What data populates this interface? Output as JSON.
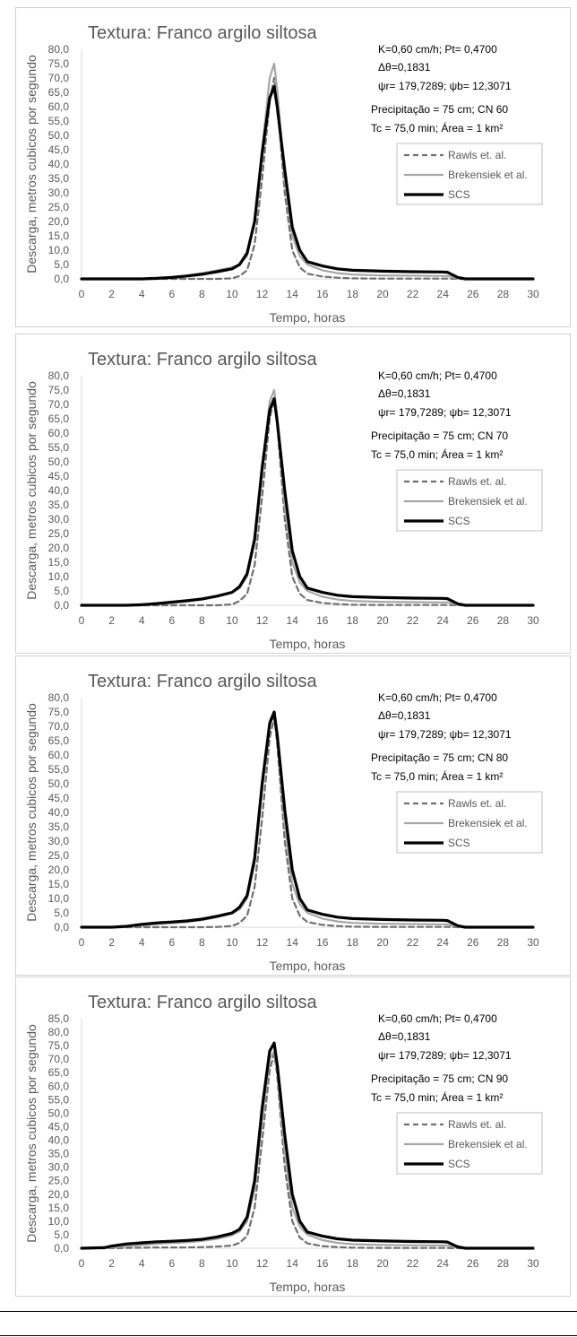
{
  "chart_data": [
    {
      "type": "line",
      "title": "Textura: Franco argilo siltosa",
      "xlabel": "Tempo, horas",
      "ylabel": "Descarga, metros cubicos por segundo",
      "xlim": [
        0,
        30
      ],
      "ylim": [
        0,
        80
      ],
      "xticks": [
        "0",
        "2",
        "4",
        "6",
        "8",
        "10",
        "12",
        "14",
        "16",
        "18",
        "20",
        "22",
        "24",
        "26",
        "28",
        "30"
      ],
      "yticks": [
        "0,0",
        "5,0",
        "10,0",
        "15,0",
        "20,0",
        "25,0",
        "30,0",
        "35,0",
        "40,0",
        "45,0",
        "50,0",
        "55,0",
        "60,0",
        "65,0",
        "70,0",
        "75,0",
        "80,0"
      ],
      "grid": false,
      "legend_position": "right",
      "annotations": [
        "K=0,60 cm/h; Pt= 0,4700",
        "Δθ=0,1831",
        "ψr= 179,7289;  ψb= 12,3071",
        "Precipitação = 75 cm; CN 60",
        "Tc = 75,0 min; Área = 1 km²"
      ],
      "x": [
        0,
        2,
        4,
        5,
        6,
        7,
        8,
        9,
        10,
        10.5,
        11,
        11.5,
        12,
        12.5,
        12.8,
        13,
        13.5,
        14,
        14.5,
        15,
        16,
        17,
        18,
        20,
        22,
        24,
        24.3,
        25,
        25.5,
        26,
        28,
        30
      ],
      "series": [
        {
          "name": "Rawls et. al.",
          "color": "#707070",
          "dash": "6,4",
          "width": 2.2,
          "values": [
            0,
            0,
            0,
            0,
            0,
            0,
            0,
            0,
            0.2,
            1,
            3,
            12,
            35,
            62,
            70,
            62,
            30,
            10,
            4,
            1.8,
            0.8,
            0.4,
            0.2,
            0.1,
            0.1,
            0.1,
            0.1,
            0,
            0,
            0,
            0,
            0
          ]
        },
        {
          "name": "Brekensiek et al.",
          "color": "#a6a6a6",
          "dash": "",
          "width": 2.2,
          "values": [
            0,
            0,
            0,
            0.2,
            0.6,
            1.2,
            2,
            3,
            4,
            5,
            8,
            20,
            45,
            70,
            75,
            66,
            35,
            15,
            8,
            5,
            3,
            2,
            1.5,
            1.2,
            1.1,
            1,
            1,
            0.2,
            0,
            0,
            0,
            0
          ]
        },
        {
          "name": "SCS",
          "color": "#000000",
          "dash": "",
          "width": 3.2,
          "values": [
            0,
            0,
            0,
            0.2,
            0.5,
            1,
            1.6,
            2.5,
            3.5,
            5,
            9,
            20,
            44,
            63,
            67,
            60,
            38,
            18,
            10,
            6,
            4.5,
            3.5,
            3,
            2.7,
            2.5,
            2.4,
            2.3,
            0.5,
            0,
            0,
            0,
            0
          ]
        }
      ]
    },
    {
      "type": "line",
      "title": "Textura: Franco argilo siltosa",
      "xlabel": "Tempo, horas",
      "ylabel": "Descarga, metros cubicos por segundo",
      "xlim": [
        0,
        30
      ],
      "ylim": [
        0,
        80
      ],
      "xticks": [
        "0",
        "2",
        "4",
        "6",
        "8",
        "10",
        "12",
        "14",
        "16",
        "18",
        "20",
        "22",
        "24",
        "26",
        "28",
        "30"
      ],
      "yticks": [
        "0,0",
        "5,0",
        "10,0",
        "15,0",
        "20,0",
        "25,0",
        "30,0",
        "35,0",
        "40,0",
        "45,0",
        "50,0",
        "55,0",
        "60,0",
        "65,0",
        "70,0",
        "75,0",
        "80,0"
      ],
      "grid": false,
      "legend_position": "right",
      "annotations": [
        "K=0,60 cm/h; Pt= 0,4700",
        "Δθ=0,1831",
        "ψr= 179,7289;  ψb= 12,3071",
        "Precipitação = 75 cm; CN 70",
        "Tc = 75,0 min; Área = 1 km²"
      ],
      "x": [
        0,
        2,
        3,
        4,
        5,
        6,
        7,
        8,
        9,
        10,
        10.5,
        11,
        11.5,
        12,
        12.5,
        12.8,
        13,
        13.5,
        14,
        14.5,
        15,
        16,
        17,
        18,
        20,
        22,
        24,
        24.3,
        25,
        25.5,
        26,
        28,
        30
      ],
      "series": [
        {
          "name": "Rawls et. al.",
          "color": "#707070",
          "dash": "6,4",
          "width": 2.2,
          "values": [
            0,
            0,
            0,
            0,
            0,
            0,
            0,
            0,
            0,
            0.3,
            1.5,
            4,
            14,
            38,
            65,
            72,
            63,
            30,
            10,
            4,
            1.8,
            0.8,
            0.4,
            0.2,
            0.1,
            0.1,
            0.1,
            0.1,
            0,
            0,
            0,
            0,
            0
          ]
        },
        {
          "name": "Brekensiek et al.",
          "color": "#a6a6a6",
          "dash": "",
          "width": 2.2,
          "values": [
            0,
            0,
            0,
            0.1,
            0.4,
            0.8,
            1.3,
            2.2,
            3.2,
            4.5,
            6,
            10,
            22,
            48,
            71,
            75,
            66,
            35,
            15,
            8,
            5,
            3,
            2,
            1.5,
            1.2,
            1.1,
            1,
            1,
            0.2,
            0,
            0,
            0,
            0
          ]
        },
        {
          "name": "SCS",
          "color": "#000000",
          "dash": "",
          "width": 3.2,
          "values": [
            0,
            0,
            0,
            0.2,
            0.6,
            1.1,
            1.6,
            2.2,
            3.2,
            4.5,
            6.5,
            11,
            23,
            48,
            68,
            72,
            64,
            40,
            19,
            10,
            6,
            4.5,
            3.5,
            3,
            2.7,
            2.5,
            2.4,
            2.3,
            0.5,
            0,
            0,
            0,
            0
          ]
        }
      ]
    },
    {
      "type": "line",
      "title": "Textura: Franco argilo siltosa",
      "xlabel": "Tempo, horas",
      "ylabel": "Descarga, metros cubicos por segundo",
      "xlim": [
        0,
        30
      ],
      "ylim": [
        0,
        80
      ],
      "xticks": [
        "0",
        "2",
        "4",
        "6",
        "8",
        "10",
        "12",
        "14",
        "16",
        "18",
        "20",
        "22",
        "24",
        "26",
        "28",
        "30"
      ],
      "yticks": [
        "0,0",
        "5,0",
        "10,0",
        "15,0",
        "20,0",
        "25,0",
        "30,0",
        "35,0",
        "40,0",
        "45,0",
        "50,0",
        "55,0",
        "60,0",
        "65,0",
        "70,0",
        "75,0",
        "80,0"
      ],
      "grid": false,
      "legend_position": "right",
      "annotations": [
        "K=0,60 cm/h; Pt= 0,4700",
        "Δθ=0,1831",
        "ψr= 179,7289;  ψb= 12,3071",
        "Precipitação = 75 cm; CN 80",
        "Tc = 75,0 min; Área = 1 km²"
      ],
      "x": [
        0,
        2,
        3,
        4,
        5,
        6,
        7,
        8,
        9,
        10,
        10.5,
        11,
        11.5,
        12,
        12.5,
        12.8,
        13,
        13.5,
        14,
        14.5,
        15,
        16,
        17,
        18,
        20,
        22,
        24,
        24.3,
        25,
        25.5,
        26,
        28,
        30
      ],
      "series": [
        {
          "name": "Rawls et. al.",
          "color": "#707070",
          "dash": "6,4",
          "width": 2.2,
          "values": [
            0,
            0,
            0,
            0,
            0,
            0,
            0,
            0,
            0.1,
            0.4,
            1.5,
            4,
            14,
            38,
            66,
            73,
            64,
            30,
            10,
            4,
            1.8,
            0.8,
            0.4,
            0.2,
            0.1,
            0.1,
            0.1,
            0.1,
            0,
            0,
            0,
            0,
            0
          ]
        },
        {
          "name": "Brekensiek et al.",
          "color": "#a6a6a6",
          "dash": "",
          "width": 2.2,
          "values": [
            0,
            0,
            0.2,
            0.6,
            1,
            1.4,
            1.8,
            2.5,
            3.5,
            4.8,
            6.2,
            10,
            22,
            48,
            72,
            75,
            67,
            36,
            15,
            8,
            5,
            3,
            2,
            1.5,
            1.2,
            1.1,
            1,
            1,
            0.2,
            0,
            0,
            0,
            0
          ]
        },
        {
          "name": "SCS",
          "color": "#000000",
          "dash": "",
          "width": 3.2,
          "values": [
            0,
            0,
            0.3,
            1,
            1.5,
            1.8,
            2.2,
            2.8,
            3.8,
            5,
            7,
            11,
            24,
            50,
            71,
            75,
            67,
            41,
            20,
            10,
            6,
            4.5,
            3.5,
            3,
            2.7,
            2.5,
            2.4,
            2.3,
            0.5,
            0,
            0,
            0,
            0
          ]
        }
      ]
    },
    {
      "type": "line",
      "title": "Textura: Franco argilo siltosa",
      "xlabel": "Tempo, horas",
      "ylabel": "Descarga, metros cubicos por segundo",
      "xlim": [
        0,
        30
      ],
      "ylim": [
        0,
        85
      ],
      "xticks": [
        "0",
        "2",
        "4",
        "6",
        "8",
        "10",
        "12",
        "14",
        "16",
        "18",
        "20",
        "22",
        "24",
        "26",
        "28",
        "30"
      ],
      "yticks": [
        "0,0",
        "5,0",
        "10,0",
        "15,0",
        "20,0",
        "25,0",
        "30,0",
        "35,0",
        "40,0",
        "45,0",
        "50,0",
        "55,0",
        "60,0",
        "65,0",
        "70,0",
        "75,0",
        "80,0",
        "85,0"
      ],
      "grid": false,
      "legend_position": "right",
      "annotations": [
        "K=0,60 cm/h; Pt= 0,4700",
        "Δθ=0,1831",
        "ψr= 179,7289;  ψb= 12,3071",
        "Precipitação = 75 cm; CN 90",
        "Tc = 75,0 min; Área = 1 km²"
      ],
      "x": [
        0,
        1.5,
        2,
        3,
        4,
        5,
        6,
        7,
        8,
        9,
        10,
        10.5,
        11,
        11.5,
        12,
        12.5,
        12.8,
        13,
        13.5,
        14,
        14.5,
        15,
        16,
        17,
        18,
        20,
        22,
        24,
        24.3,
        25,
        25.5,
        26,
        28,
        30
      ],
      "series": [
        {
          "name": "Rawls et. al.",
          "color": "#707070",
          "dash": "6,4",
          "width": 2.2,
          "values": [
            0,
            0,
            0,
            0.1,
            0.2,
            0.3,
            0.3,
            0.3,
            0.4,
            0.6,
            1,
            2,
            4.5,
            15,
            40,
            66,
            72,
            64,
            30,
            10,
            4,
            1.8,
            0.8,
            0.4,
            0.2,
            0.1,
            0.1,
            0.1,
            0.1,
            0,
            0,
            0,
            0,
            0
          ]
        },
        {
          "name": "Brekensiek et al.",
          "color": "#a6a6a6",
          "dash": "",
          "width": 2.2,
          "values": [
            0,
            0,
            0.3,
            0.8,
            1.2,
            1.6,
            1.9,
            2.2,
            2.7,
            3.5,
            4.8,
            6.2,
            10,
            22,
            48,
            70,
            73,
            66,
            36,
            15,
            8,
            5,
            3,
            2,
            1.5,
            1.2,
            1.1,
            1,
            1,
            0.2,
            0,
            0,
            0,
            0
          ]
        },
        {
          "name": "SCS",
          "color": "#000000",
          "dash": "",
          "width": 3.2,
          "values": [
            0,
            0.2,
            0.8,
            1.6,
            2,
            2.4,
            2.6,
            2.9,
            3.3,
            4.2,
            5.5,
            7,
            11.5,
            25,
            52,
            73,
            76,
            68,
            42,
            20,
            10,
            6,
            4.5,
            3.5,
            3,
            2.7,
            2.5,
            2.4,
            2.3,
            0.5,
            0,
            0,
            0,
            0
          ]
        }
      ]
    }
  ]
}
